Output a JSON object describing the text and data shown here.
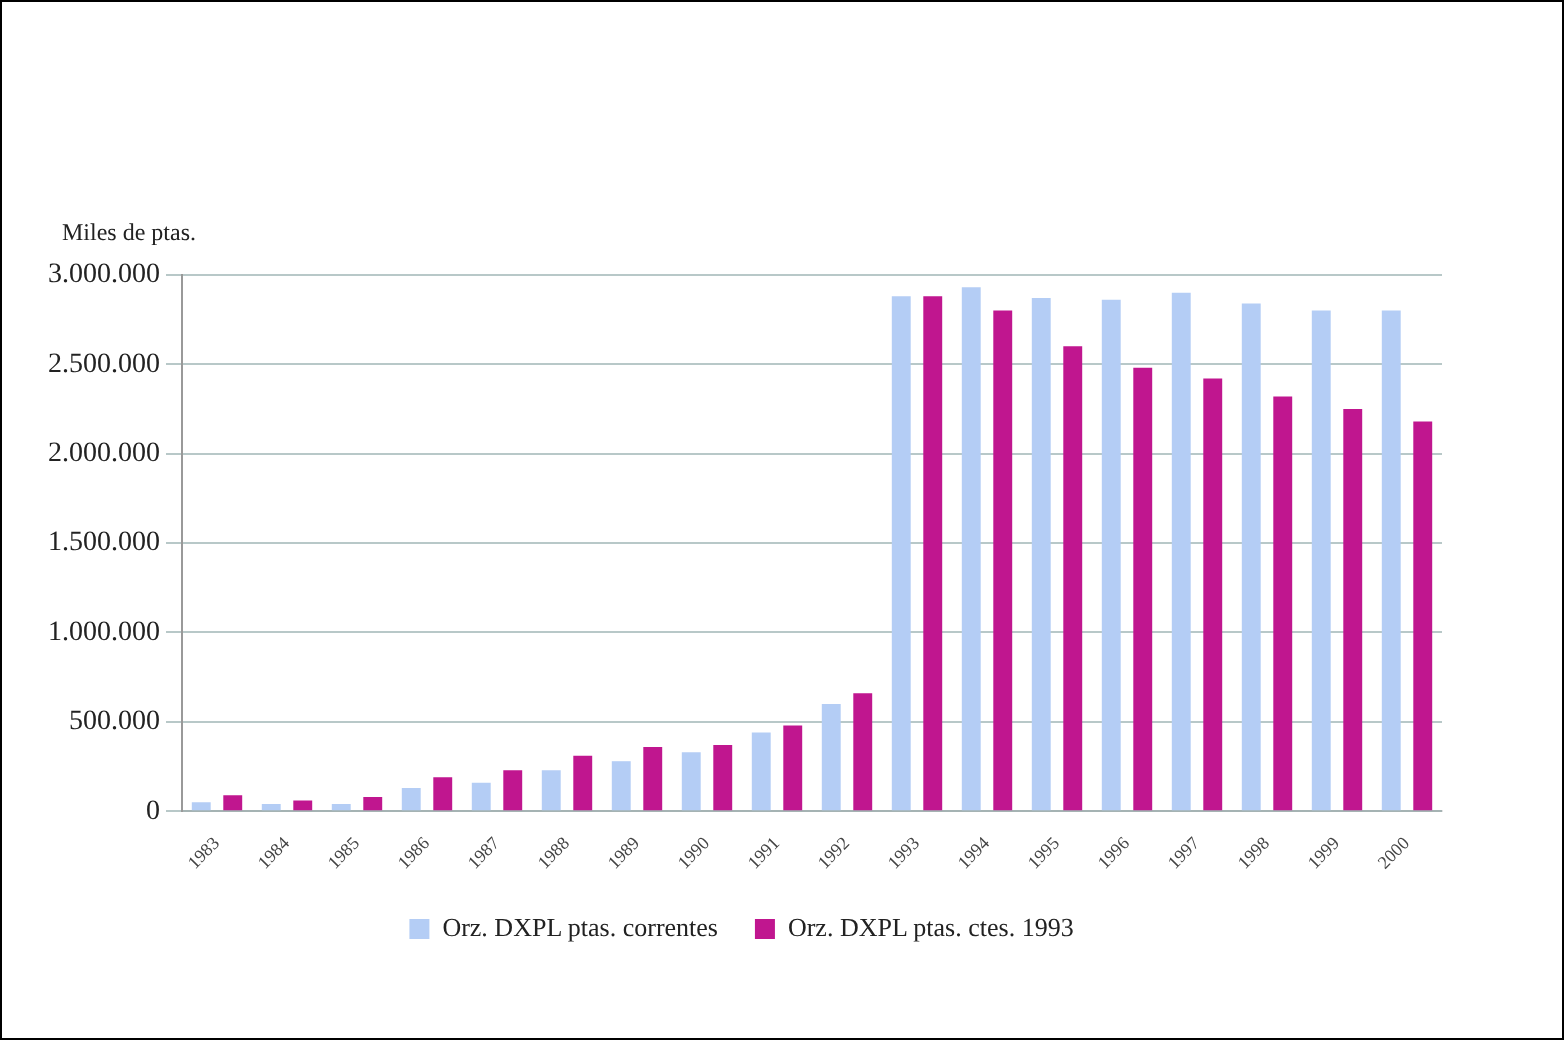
{
  "chart_data": {
    "type": "bar",
    "ylabel": "Miles de ptas.",
    "categories": [
      "1983",
      "1984",
      "1985",
      "1986",
      "1987",
      "1988",
      "1989",
      "1990",
      "1991",
      "1992",
      "1993",
      "1994",
      "1995",
      "1996",
      "1997",
      "1998",
      "1999",
      "2000"
    ],
    "series": [
      {
        "name": "Orz. DXPL ptas. correntes",
        "color": "#b4cdf5",
        "values": [
          50000,
          40000,
          40000,
          130000,
          160000,
          230000,
          280000,
          330000,
          440000,
          600000,
          2880000,
          2930000,
          2870000,
          2860000,
          2900000,
          2840000,
          2800000,
          2800000
        ]
      },
      {
        "name": "Orz. DXPL ptas. ctes. 1993",
        "color": "#c0168f",
        "values": [
          90000,
          60000,
          80000,
          190000,
          230000,
          310000,
          360000,
          370000,
          480000,
          660000,
          2880000,
          2800000,
          2600000,
          2480000,
          2420000,
          2320000,
          2250000,
          2180000
        ]
      }
    ],
    "ylim": [
      0,
      3000000
    ],
    "yticks": [
      {
        "value": 0,
        "label": "0"
      },
      {
        "value": 500000,
        "label": "500.000"
      },
      {
        "value": 1000000,
        "label": "1.000.000"
      },
      {
        "value": 1500000,
        "label": "1.500.000"
      },
      {
        "value": 2000000,
        "label": "2.000.000"
      },
      {
        "value": 2500000,
        "label": "2.500.000"
      },
      {
        "value": 3000000,
        "label": "3.000.000"
      }
    ],
    "grid": "y",
    "legend": "bottom"
  }
}
